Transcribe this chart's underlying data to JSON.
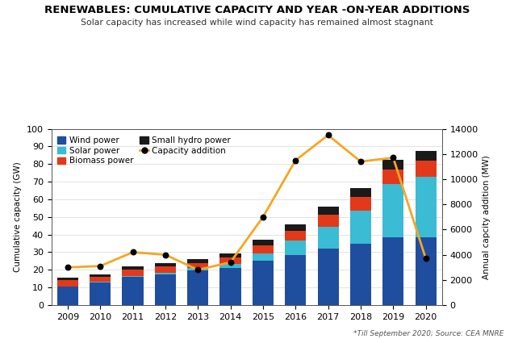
{
  "years": [
    2009,
    2010,
    2011,
    2012,
    2013,
    2014,
    2015,
    2016,
    2017,
    2018,
    2019,
    2020
  ],
  "wind": [
    10.5,
    13.0,
    16.0,
    17.5,
    19.5,
    21.0,
    25.0,
    28.5,
    32.0,
    35.0,
    38.5,
    38.5
  ],
  "solar": [
    0.1,
    0.1,
    0.5,
    1.0,
    1.5,
    2.5,
    4.5,
    8.0,
    12.5,
    18.5,
    30.0,
    34.5
  ],
  "biomass": [
    3.5,
    3.0,
    3.5,
    3.5,
    3.0,
    3.5,
    4.5,
    5.5,
    7.0,
    8.0,
    8.5,
    9.0
  ],
  "hydro": [
    1.5,
    1.5,
    2.0,
    2.0,
    2.0,
    2.5,
    3.0,
    4.0,
    4.5,
    5.0,
    5.5,
    5.5
  ],
  "capacity_addition_mw": [
    3000,
    3100,
    4200,
    4000,
    2800,
    3400,
    7000,
    11500,
    13500,
    11400,
    11700,
    3700
  ],
  "wind_color": "#1f4e9f",
  "solar_color": "#3bbbd4",
  "biomass_color": "#e2391b",
  "hydro_color": "#1a1a1a",
  "line_color": "#f5a623",
  "title": "RENEWABLES: CUMULATIVE CAPACITY AND YEAR -ON-YEAR ADDITIONS",
  "subtitle": "Solar capacity has increased while wind capacity has remained almost stagnant",
  "ylabel_left": "Cumulative capacity (GW)",
  "ylabel_right": "Annual capcity addition (MW)",
  "ylim_left": [
    0,
    100
  ],
  "ylim_right": [
    0,
    14000
  ],
  "footnote": "*Till September 2020; Source: CEA MNRE"
}
